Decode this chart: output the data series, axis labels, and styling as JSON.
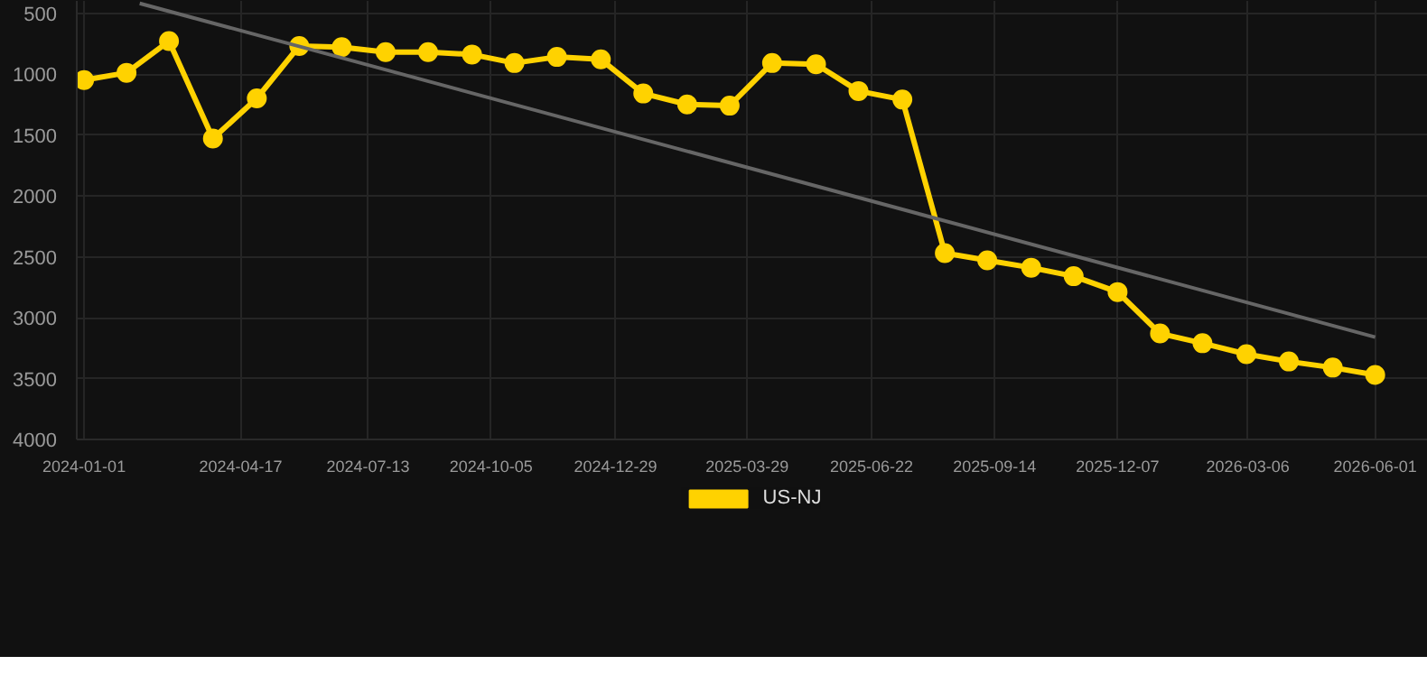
{
  "chart_data": {
    "type": "line",
    "x": [
      "2024-01-01",
      "2024-01-30",
      "2024-02-28",
      "2024-03-29",
      "2024-04-28",
      "2024-05-27",
      "2024-06-25",
      "2024-07-25",
      "2024-08-23",
      "2024-09-22",
      "2024-10-21",
      "2024-11-19",
      "2024-12-19",
      "2025-01-17",
      "2025-02-16",
      "2025-03-17",
      "2025-04-15",
      "2025-05-15",
      "2025-06-13",
      "2025-07-13",
      "2025-08-11",
      "2025-09-09",
      "2025-10-09",
      "2025-11-07",
      "2025-12-07",
      "2026-01-05",
      "2026-02-03",
      "2026-03-05",
      "2026-04-03",
      "2026-05-03",
      "2026-06-01"
    ],
    "series": [
      {
        "name": "US-NJ",
        "color": "#ffd200",
        "marker": "circle",
        "values": [
          1050,
          990,
          730,
          1530,
          1200,
          770,
          780,
          820,
          820,
          840,
          910,
          860,
          880,
          1160,
          1250,
          1260,
          910,
          920,
          1140,
          1210,
          2470,
          2530,
          2590,
          2660,
          2790,
          3130,
          3210,
          3300,
          3360,
          3410,
          3470
        ]
      },
      {
        "color": "#666666",
        "marker": "none",
        "x": [
          "2024-02-08",
          "2026-06-01"
        ],
        "values": [
          420,
          3160
        ]
      }
    ],
    "ylim": [
      4000,
      400
    ],
    "yticks": [
      500,
      1000,
      1500,
      2000,
      2500,
      3000,
      3500,
      4000
    ],
    "xlim": [
      "2023-12-27",
      "2026-07-07"
    ],
    "xticks": [
      "2024-01-01",
      "2024-04-17",
      "2024-07-13",
      "2024-10-05",
      "2024-12-29",
      "2025-03-29",
      "2025-06-22",
      "2025-09-14",
      "2025-12-07",
      "2026-03-06",
      "2026-06-01"
    ],
    "grid": true,
    "legend": "bottom",
    "line_style": "solid"
  }
}
